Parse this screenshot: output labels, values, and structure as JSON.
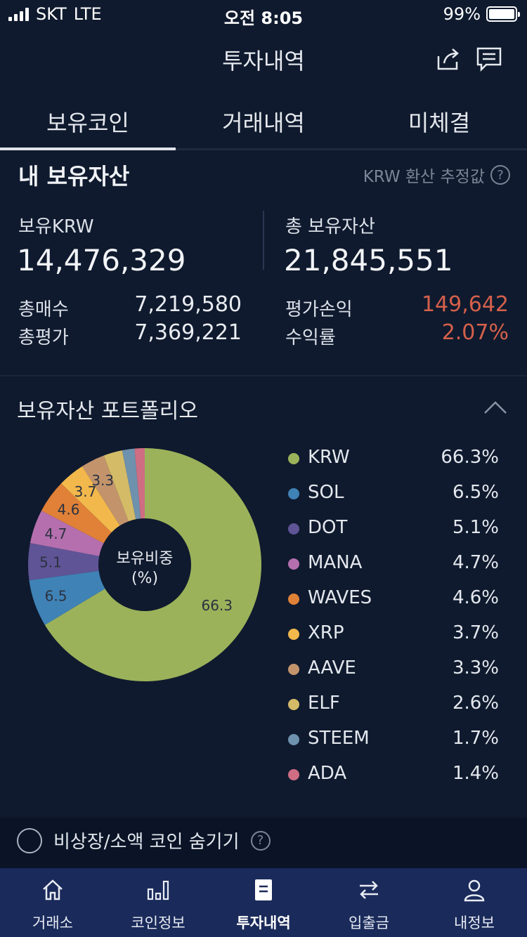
{
  "status": {
    "carrier": "SKT",
    "network": "LTE",
    "time": "오전 8:05",
    "battery": "99%"
  },
  "header": {
    "title": "투자내역",
    "share_icon": "share-icon",
    "chat_icon": "chat-icon"
  },
  "tabs": [
    {
      "label": "보유코인",
      "active": true
    },
    {
      "label": "거래내역",
      "active": false
    },
    {
      "label": "미체결",
      "active": false
    }
  ],
  "assets": {
    "title": "내 보유자산",
    "estimate_note": "KRW 환산 추정값",
    "help_mark": "?",
    "holding_krw_label": "보유KRW",
    "holding_krw_value": "14,476,329",
    "total_assets_label": "총 보유자산",
    "total_assets_value": "21,845,551",
    "total_buy_label": "총매수",
    "total_buy_value": "7,219,580",
    "total_eval_label": "총평가",
    "total_eval_value": "7,369,221",
    "pnl_label": "평가손익",
    "pnl_value": "149,642",
    "roi_label": "수익률",
    "roi_value": "2.07%",
    "positive_color": "#d5604b"
  },
  "portfolio": {
    "title": "보유자산 포트폴리오",
    "center_line1": "보유비중",
    "center_line2": "(%)",
    "collapse_icon": "chevron-up-icon"
  },
  "chart_data": {
    "type": "pie",
    "categories": [
      "KRW",
      "SOL",
      "DOT",
      "MANA",
      "WAVES",
      "XRP",
      "AAVE",
      "ELF",
      "STEEM",
      "ADA"
    ],
    "values": [
      66.3,
      6.5,
      5.1,
      4.7,
      4.6,
      3.7,
      3.3,
      2.6,
      1.7,
      1.4
    ],
    "labels": [
      "66.3%",
      "6.5%",
      "5.1%",
      "4.7%",
      "4.6%",
      "3.7%",
      "3.3%",
      "2.6%",
      "1.7%",
      "1.4%"
    ],
    "colors": [
      "#9bb25a",
      "#3f82b6",
      "#5f5496",
      "#b56fae",
      "#e08137",
      "#f2b84b",
      "#c3946c",
      "#d4bb67",
      "#6e92ad",
      "#cf6d83"
    ],
    "slice_labels": [
      "66.3",
      "6.5",
      "5.1",
      "4.7",
      "4.6",
      "3.7",
      "3.3",
      "",
      "",
      ""
    ],
    "legend_position": "right"
  },
  "options": {
    "hide_small_label": "비상장/소액 코인 숨기기",
    "help_mark": "?"
  },
  "nav": [
    {
      "label": "거래소",
      "icon": "home-icon",
      "active": false
    },
    {
      "label": "코인정보",
      "icon": "bar-chart-icon",
      "active": false
    },
    {
      "label": "투자내역",
      "icon": "document-icon",
      "active": true
    },
    {
      "label": "입출금",
      "icon": "transfer-icon",
      "active": false
    },
    {
      "label": "내정보",
      "icon": "user-icon",
      "active": false
    }
  ]
}
